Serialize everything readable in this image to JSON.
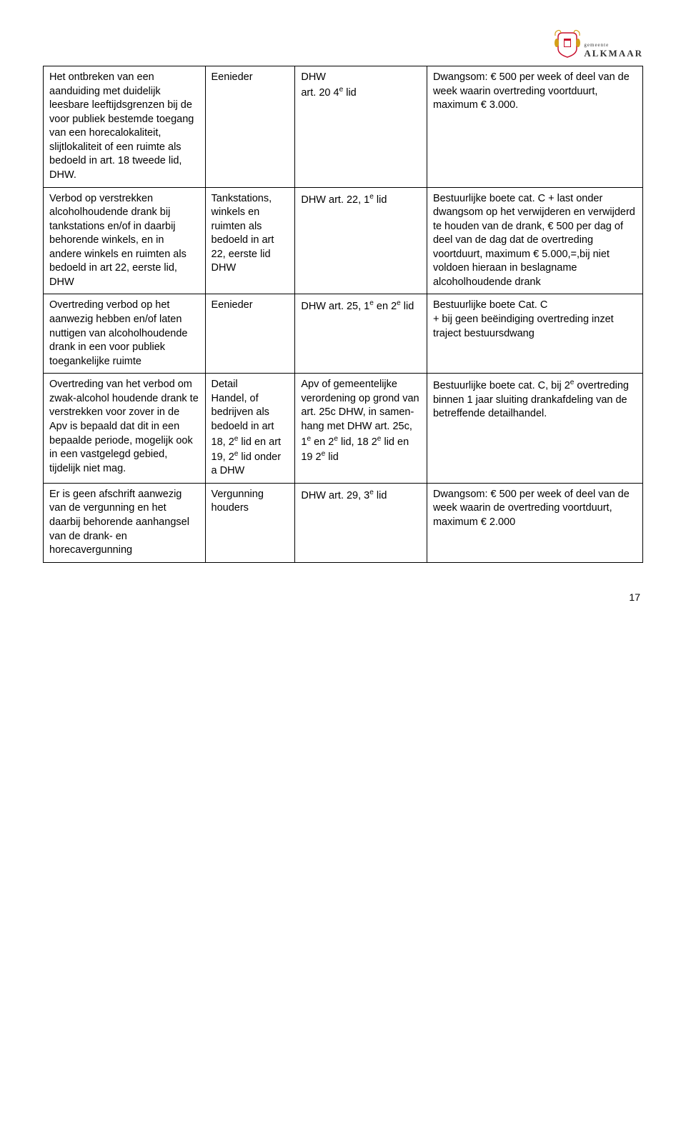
{
  "logo": {
    "top": "gemeente",
    "bottom": "ALKMAAR",
    "shield_red": "#c8102e",
    "shield_gold": "#d4a017",
    "lion_gold": "#d4a017"
  },
  "table": {
    "border_color": "#000000",
    "font_size": 14.5,
    "col_widths_pct": [
      27,
      15,
      22,
      36
    ],
    "rows": [
      {
        "c1": "Het ontbreken van een aanduiding met duidelijk leesbare leeftijdsgrenzen bij de voor publiek bestemde toegang van een horecalokaliteit, slijtlokaliteit of een ruimte als bedoeld in art. 18 tweede lid, DHW.",
        "c2": "Eenieder",
        "c3": "DHW\nart. 20 4ᵉ lid",
        "c4": "Dwangsom: € 500 per week of deel van de week waarin overtreding voortduurt, maximum € 3.000."
      },
      {
        "c1": "Verbod op verstrekken alcoholhoudende drank bij tankstations en/of in daarbij behorende winkels, en in andere winkels en ruimten als bedoeld in art 22, eerste lid, DHW",
        "c2": "Tankstations, winkels en ruimten als bedoeld in art 22, eerste lid DHW",
        "c3": "DHW art. 22, 1ᵉ lid",
        "c4": "Bestuurlijke boete cat. C  + last onder dwangsom op het verwijderen en verwijderd te houden van de drank, € 500 per dag of deel van de dag dat de overtreding voortduurt, maximum € 5.000,=,bij niet voldoen hieraan in beslagname alcoholhoudende drank"
      },
      {
        "c1": "Overtreding verbod op het aanwezig hebben en/of laten nuttigen van alcoholhoudende drank in een voor publiek toegankelijke ruimte",
        "c2": "Eenieder",
        "c3": "DHW art. 25, 1ᵉ en 2ᵉ lid",
        "c4": "Bestuurlijke boete Cat. C\n+ bij geen beëindiging overtreding inzet traject bestuursdwang"
      },
      {
        "c1": "Overtreding van het verbod om zwak-alcohol houdende drank te verstrekken voor zover in de Apv is bepaald dat dit in een bepaalde periode, mogelijk ook in een vastgelegd gebied, tijdelijk niet mag.",
        "c2": "Detail\nHandel, of bedrijven als bedoeld in art 18, 2ᵉ lid en art 19, 2ᵉ lid onder a DHW",
        "c3": "Apv of gemeentelijke verordening op grond van art. 25c DHW, in samen-hang met DHW art. 25c, 1ᵉ en 2ᵉ lid, 18 2ᵉ lid en 19 2ᵉ lid",
        "c4": "Bestuurlijke boete cat. C, bij 2ᵉ overtreding binnen 1 jaar sluiting drankafdeling van de betreffende detailhandel."
      },
      {
        "c1": "Er is geen afschrift aanwezig van de vergunning en het daarbij behorende aanhangsel van de drank- en horecavergunning",
        "c2": "Vergunning houders",
        "c3": "DHW art. 29, 3ᵉ lid",
        "c4": "Dwangsom: € 500 per week of deel van de week waarin de overtreding voortduurt, maximum € 2.000"
      }
    ]
  },
  "page_number": "17"
}
